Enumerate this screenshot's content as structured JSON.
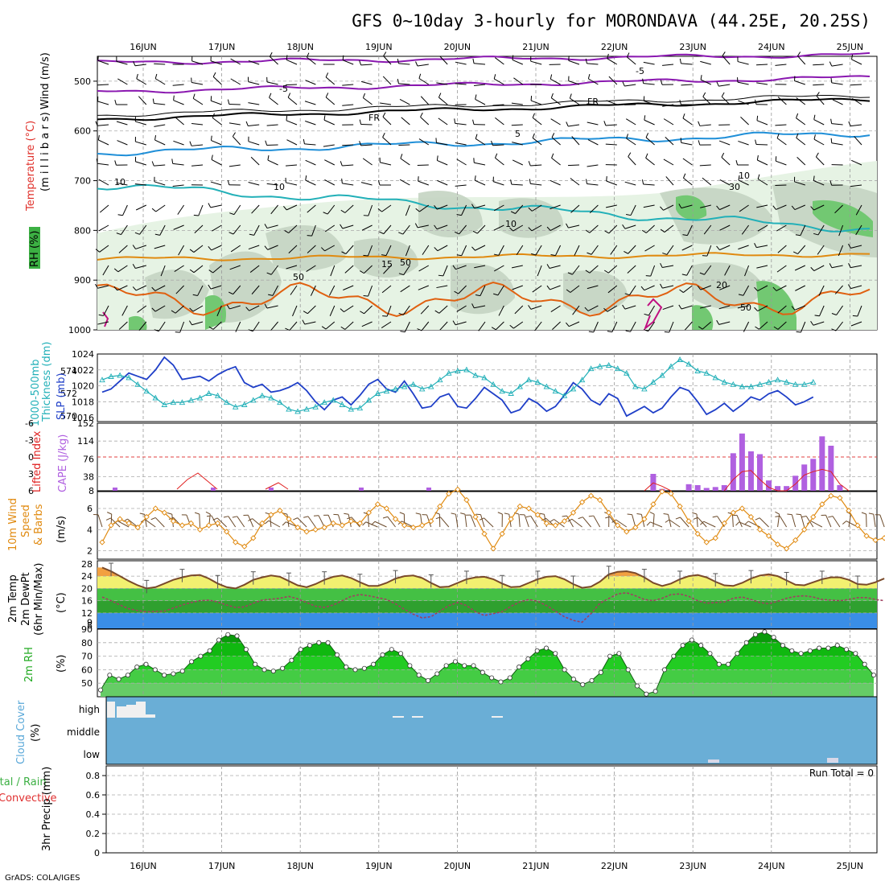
{
  "title": "GFS 0~10day 3-hourly for MORONDAVA (44.25E, 20.25S)",
  "credit": "GrADS: COLA/IGES",
  "dates": [
    "16JUN",
    "17JUN",
    "18JUN",
    "19JUN",
    "20JUN",
    "21JUN",
    "22JUN",
    "23JUN",
    "24JUN",
    "25JUN"
  ],
  "colors": {
    "wind": "#000000",
    "temp": "#e0302a",
    "rh": "#3cb043",
    "slp": "#1f3fc8",
    "thickness": "#22b0b8",
    "cape": "#b060e0",
    "lifted": "#e02020",
    "wind10": "#e08a10",
    "rh2m": "#22aa22",
    "cloud": "#5aa8d8",
    "precip_total": "#3cb043",
    "precip_conv": "#e03030"
  },
  "panels": {
    "upper": {
      "label_wind": "Wind (m/s)",
      "label_temp": "Temperature (°C)",
      "label_rh": "RH (%)",
      "label_units": "(m i l l i b a r s)",
      "yticks": [
        "500",
        "600",
        "700",
        "800",
        "900",
        "1000"
      ],
      "contours": [
        "-5",
        "-5",
        "FR",
        "FR",
        "5",
        "10",
        "10",
        "15",
        "20",
        "10",
        "10",
        "30",
        "50",
        "50",
        "50"
      ]
    },
    "slp": {
      "label_left": "1000-500mb",
      "label_left2": "Thickness (dm)",
      "label_right": "SLP (mb)",
      "left_ticks": [
        "574",
        "572",
        "570"
      ],
      "right_ticks": [
        "1024",
        "1022",
        "1020",
        "1018",
        "1016"
      ]
    },
    "cape": {
      "label_left": "Lifted Index",
      "label_right": "CAPE (J/kg)",
      "left_ticks": [
        "-6",
        "-3",
        "0",
        "3",
        "6"
      ],
      "right_ticks": [
        "152",
        "114",
        "76",
        "38",
        "8"
      ]
    },
    "wind10": {
      "label1": "10m Wind",
      "label2": "Speed",
      "label3": "& Barbs",
      "label_units": "(m/s)",
      "yticks": [
        "6",
        "4",
        "2"
      ]
    },
    "temp2m": {
      "label1": "2m Temp",
      "label2": "2m DewPt",
      "label3": "(6hr Min/Max)",
      "label_units": "(°C)",
      "yticks": [
        "28",
        "24",
        "20",
        "16",
        "12",
        "9",
        "8"
      ]
    },
    "rh2m": {
      "label1": "2m RH",
      "label_units": "(%)",
      "yticks": [
        "90",
        "80",
        "70",
        "60",
        "50"
      ]
    },
    "cloud": {
      "label1": "Cloud Cover",
      "label_units": "(%)",
      "levels": [
        "high",
        "middle",
        "low"
      ]
    },
    "precip": {
      "label_a": "Total / Rain",
      "label_b": "Convective",
      "label_c": "3hr Precip (mm)",
      "run_total": "Run Total = 0",
      "yticks": [
        "0.8",
        "0.6",
        "0.4",
        "0.2",
        "0"
      ]
    }
  },
  "chart_data": [
    {
      "type": "line",
      "name": "SLP and thickness",
      "x_start": "15JUN 12Z",
      "x_step_hours": 3,
      "ylim_slp": [
        1015.5,
        1024
      ],
      "ylim_thickness": [
        569.5,
        575.5
      ],
      "series": [
        {
          "name": "SLP (mb)",
          "values": [
            1019.2,
            1019.6,
            1020.6,
            1021.6,
            1021.2,
            1020.8,
            1022.0,
            1023.6,
            1022.6,
            1020.8,
            1021.0,
            1021.2,
            1020.6,
            1021.4,
            1022.0,
            1022.4,
            1020.4,
            1019.8,
            1020.2,
            1019.2,
            1019.4,
            1019.8,
            1020.4,
            1019.4,
            1018.0,
            1017.0,
            1018.2,
            1018.6,
            1017.6,
            1018.8,
            1020.2,
            1020.8,
            1019.6,
            1019.2,
            1020.6,
            1019.0,
            1017.2,
            1017.4,
            1018.6,
            1019.0,
            1017.4,
            1017.2,
            1018.4,
            1019.8,
            1019.0,
            1018.2,
            1016.6,
            1017.0,
            1018.4,
            1017.8,
            1016.8,
            1017.4,
            1018.8,
            1020.4,
            1019.6,
            1018.2,
            1017.6,
            1019.0,
            1018.4,
            1016.2,
            1016.8,
            1017.4,
            1016.6,
            1017.2,
            1018.6,
            1019.8,
            1019.4,
            1018.0,
            1016.4,
            1017.0,
            1017.8,
            1016.8,
            1017.6,
            1018.6,
            1018.2,
            1019.0,
            1019.4,
            1018.6,
            1017.6,
            1018.0,
            1018.6
          ]
        },
        {
          "name": "1000-500mb Thickness (dm)",
          "values": [
            573.2,
            573.5,
            573.6,
            573.4,
            572.8,
            572.2,
            571.6,
            571.0,
            571.2,
            571.2,
            571.4,
            571.6,
            572.0,
            571.8,
            571.2,
            570.8,
            571.0,
            571.4,
            571.8,
            571.6,
            571.2,
            570.6,
            570.4,
            570.6,
            570.8,
            571.2,
            571.4,
            571.0,
            570.6,
            570.7,
            571.4,
            572.0,
            572.2,
            572.4,
            572.6,
            572.8,
            572.4,
            572.6,
            573.2,
            573.8,
            574.0,
            574.1,
            573.6,
            573.4,
            572.8,
            572.2,
            572.0,
            572.6,
            573.2,
            573.0,
            572.6,
            572.2,
            571.8,
            572.4,
            573.2,
            574.2,
            574.4,
            574.5,
            574.2,
            573.8,
            572.6,
            572.4,
            573.0,
            573.6,
            574.4,
            575.0,
            574.6,
            574.0,
            573.8,
            573.4,
            573.0,
            572.8,
            572.6,
            572.6,
            572.8,
            573.0,
            573.2,
            573.0,
            572.8,
            572.8,
            573.0
          ]
        }
      ]
    },
    {
      "type": "bar",
      "name": "CAPE",
      "x_start": "15JUN 12Z",
      "x_step_hours": 3,
      "ylim": [
        8,
        152
      ],
      "series": [
        {
          "name": "CAPE (J/kg)",
          "values": [
            8,
            8,
            8,
            8,
            8,
            8,
            8,
            8,
            8,
            8,
            8,
            8,
            8,
            8,
            8,
            8,
            8,
            8,
            8,
            8,
            8,
            8,
            8,
            8,
            8,
            8,
            8,
            8,
            8,
            8,
            8,
            8,
            8,
            8,
            8,
            8,
            8,
            8,
            8,
            8,
            8,
            8,
            8,
            8,
            8,
            8,
            8,
            8,
            8,
            8,
            8,
            8,
            8,
            8,
            8,
            8,
            8,
            8,
            8,
            8,
            8,
            8,
            44,
            12,
            8,
            8,
            22,
            20,
            14,
            16,
            20,
            88,
            130,
            92,
            86,
            30,
            18,
            18,
            40,
            64,
            76,
            124,
            104,
            20,
            8,
            8,
            8,
            8,
            8,
            8,
            8
          ]
        },
        {
          "name": "Lifted Index",
          "values": [
            6,
            6,
            6,
            6,
            6,
            6,
            6,
            6,
            6,
            6,
            6,
            6,
            6,
            6,
            6,
            6,
            6,
            6,
            6,
            6,
            6,
            6,
            6,
            6,
            6,
            6,
            6,
            6,
            6,
            6,
            6,
            6,
            6,
            6,
            6,
            6,
            6,
            6,
            6,
            6,
            6,
            6,
            6,
            6,
            6,
            6,
            6,
            6,
            6,
            6,
            6,
            6,
            6,
            6,
            6,
            6,
            6,
            6,
            6,
            6,
            6,
            6,
            4.6,
            5.2,
            6,
            6,
            6,
            6,
            6,
            6,
            6,
            4,
            2.6,
            2.4,
            4,
            5.4,
            6,
            6,
            4.8,
            3.2,
            2.6,
            2.2,
            2.6,
            4.8,
            6,
            6,
            6,
            6,
            6,
            6,
            6
          ]
        }
      ]
    },
    {
      "type": "line",
      "name": "10m wind speed",
      "x_start": "15JUN 12Z",
      "x_step_hours": 3,
      "ylim": [
        1.2,
        7.6
      ],
      "series": [
        {
          "name": "10m Wind Speed (m/s)",
          "values": [
            2.8,
            4.4,
            5.0,
            4.6,
            4.2,
            5.2,
            6.0,
            5.6,
            4.8,
            4.4,
            4.6,
            4.0,
            4.4,
            4.6,
            3.8,
            2.8,
            2.4,
            3.2,
            4.6,
            5.4,
            5.8,
            5.0,
            4.2,
            3.8,
            4.0,
            4.2,
            4.6,
            4.4,
            4.8,
            4.6,
            5.6,
            6.4,
            6.0,
            5.0,
            4.4,
            4.2,
            4.4,
            4.8,
            6.2,
            7.4,
            7.8,
            6.8,
            5.2,
            3.6,
            2.2,
            3.6,
            5.0,
            6.2,
            6.0,
            5.4,
            4.6,
            4.4,
            4.8,
            5.6,
            6.6,
            7.2,
            6.8,
            5.6,
            4.4,
            3.8,
            4.2,
            5.0,
            6.4,
            7.6,
            7.4,
            6.2,
            4.8,
            3.6,
            2.8,
            3.2,
            4.6,
            5.6,
            6.0,
            5.2,
            4.0,
            3.4,
            2.6,
            2.2,
            3.0,
            4.0,
            5.2,
            6.4,
            7.2,
            7.0,
            5.8,
            4.4,
            3.4,
            3.0,
            3.2
          ]
        }
      ]
    },
    {
      "type": "area",
      "name": "2m temperature and dewpoint",
      "x_start": "15JUN 12Z",
      "x_step_hours": 3,
      "ylim": [
        7,
        29
      ],
      "series": [
        {
          "name": "2m Temp (°C)",
          "values": [
            26.8,
            25.6,
            24.0,
            22.4,
            21.0,
            20.0,
            20.4,
            21.6,
            22.8,
            23.6,
            24.2,
            24.4,
            23.2,
            21.6,
            20.4,
            20.0,
            21.2,
            22.8,
            23.6,
            24.2,
            23.8,
            22.4,
            21.0,
            20.4,
            21.4,
            22.8,
            23.8,
            24.2,
            23.4,
            22.0,
            20.8,
            20.8,
            21.8,
            23.2,
            24.0,
            24.2,
            23.4,
            21.8,
            20.4,
            20.6,
            21.8,
            23.0,
            23.6,
            23.8,
            23.0,
            21.6,
            20.4,
            20.6,
            21.8,
            23.0,
            23.8,
            24.0,
            23.0,
            21.4,
            20.2,
            20.6,
            22.2,
            24.6,
            25.4,
            25.6,
            25.0,
            23.6,
            21.8,
            20.8,
            21.6,
            23.0,
            24.0,
            24.4,
            23.6,
            22.2,
            21.0,
            20.8,
            21.8,
            23.2,
            24.2,
            24.6,
            24.0,
            22.6,
            21.2,
            21.0,
            22.0,
            23.0,
            23.6,
            23.6,
            22.8,
            21.4,
            21.2,
            22.0,
            23.2
          ]
        },
        {
          "name": "2m DewPt (°C)",
          "values": [
            17.2,
            16.0,
            14.6,
            13.4,
            12.8,
            12.4,
            12.6,
            13.6,
            14.6,
            15.4,
            16.0,
            16.2,
            15.6,
            14.6,
            13.8,
            14.0,
            15.2,
            16.2,
            16.8,
            17.4,
            16.6,
            15.4,
            14.2,
            13.8,
            14.6,
            16.0,
            17.4,
            18.0,
            17.6,
            16.4,
            15.0,
            13.2,
            11.6,
            10.4,
            10.8,
            12.6,
            14.4,
            15.4,
            14.4,
            12.4,
            11.2,
            12.4,
            14.2,
            15.6,
            16.4,
            15.8,
            14.4,
            12.6,
            10.8,
            9.6,
            9.0,
            11.8,
            15.2,
            18.2,
            18.6,
            17.6,
            16.4,
            16.0,
            16.8,
            18.0,
            18.2,
            17.4,
            16.0,
            15.2,
            15.6,
            16.8,
            17.2,
            16.4,
            15.4,
            15.0,
            15.8,
            16.8,
            17.4,
            17.6,
            17.2,
            16.4,
            16.0,
            16.4,
            17.0,
            17.0,
            16.4,
            16.0
          ]
        }
      ]
    },
    {
      "type": "area",
      "name": "2m relative humidity",
      "x_start": "15JUN 12Z",
      "x_step_hours": 3,
      "ylim": [
        40,
        90
      ],
      "series": [
        {
          "name": "2m RH (%)",
          "values": [
            45,
            56,
            53,
            56,
            62,
            64,
            60,
            56,
            57,
            59,
            66,
            70,
            74,
            82,
            86,
            85,
            75,
            64,
            60,
            59,
            61,
            67,
            75,
            78,
            80,
            80,
            71,
            62,
            60,
            61,
            64,
            71,
            75,
            72,
            63,
            56,
            52,
            57,
            63,
            66,
            63,
            63,
            58,
            54,
            51,
            54,
            62,
            68,
            74,
            76,
            72,
            60,
            53,
            49,
            52,
            58,
            70,
            72,
            60,
            48,
            42,
            44,
            60,
            70,
            78,
            82,
            78,
            72,
            64,
            64,
            72,
            80,
            86,
            88,
            84,
            78,
            74,
            72,
            74,
            76,
            76,
            78,
            75,
            72,
            64,
            56
          ]
        }
      ]
    },
    {
      "type": "area",
      "name": "Cloud cover",
      "levels": [
        "high",
        "middle",
        "low"
      ],
      "note": "Sparse high cloud near start of period; occasional low cloud around 23JUN and 24JUN."
    },
    {
      "type": "bar",
      "name": "3hr precip",
      "ylim": [
        0,
        0.9
      ],
      "series": [
        {
          "name": "Total / Rain",
          "values": [
            0,
            0,
            0,
            0,
            0,
            0,
            0,
            0,
            0,
            0
          ]
        },
        {
          "name": "Convective",
          "values": [
            0,
            0,
            0,
            0,
            0,
            0,
            0,
            0,
            0,
            0
          ]
        }
      ]
    }
  ]
}
